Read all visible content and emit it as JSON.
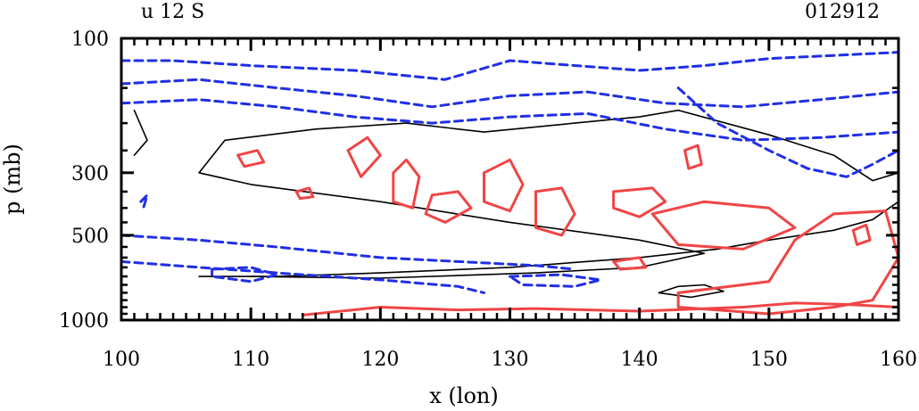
{
  "chart_data": {
    "type": "contour",
    "title_left": "u 12 S",
    "title_right": "012912",
    "xlabel": "x (lon)",
    "ylabel": "p (mb)",
    "xlim": [
      100,
      160
    ],
    "ylim": [
      1000,
      100
    ],
    "xticks": [
      100,
      110,
      120,
      130,
      140,
      150,
      160
    ],
    "xtick_labels": [
      "100",
      "110",
      "120",
      "130",
      "140",
      "150",
      "160"
    ],
    "yticks": [
      100,
      300,
      500,
      1000
    ],
    "ytick_labels": [
      "100",
      "300",
      "500",
      "1000"
    ],
    "colors": {
      "negative": "#1f2fe6",
      "zero": "#000000",
      "positive": "#f04545"
    },
    "contours": [
      {
        "sign": "zero",
        "points": [
          [
            106,
            700
          ],
          [
            112,
            700
          ],
          [
            120,
            680
          ],
          [
            130,
            650
          ],
          [
            140,
            600
          ],
          [
            146,
            560
          ],
          [
            150,
            520
          ],
          [
            155,
            480
          ],
          [
            158,
            440
          ],
          [
            160,
            380
          ]
        ]
      },
      {
        "sign": "zero",
        "points": [
          [
            106,
            300
          ],
          [
            108,
            230
          ],
          [
            115,
            210
          ],
          [
            122,
            200
          ],
          [
            128,
            215
          ],
          [
            135,
            200
          ],
          [
            140,
            190
          ],
          [
            143,
            180
          ],
          [
            150,
            220
          ],
          [
            155,
            260
          ],
          [
            158,
            320
          ],
          [
            160,
            300
          ]
        ]
      },
      {
        "sign": "zero",
        "points": [
          [
            106,
            300
          ],
          [
            110,
            330
          ],
          [
            120,
            380
          ],
          [
            130,
            450
          ],
          [
            140,
            520
          ],
          [
            145,
            580
          ],
          [
            140,
            650
          ],
          [
            132,
            680
          ],
          [
            120,
            710
          ],
          [
            110,
            700
          ]
        ]
      },
      {
        "sign": "zero",
        "points": [
          [
            101,
            180
          ],
          [
            102,
            230
          ],
          [
            101,
            260
          ]
        ]
      },
      {
        "sign": "zero",
        "points": [
          [
            141.5,
            800
          ],
          [
            143,
            760
          ],
          [
            145,
            750
          ],
          [
            146.5,
            790
          ],
          [
            144,
            830
          ],
          [
            141.5,
            800
          ]
        ]
      },
      {
        "sign": "negative",
        "points": [
          [
            100,
            120
          ],
          [
            104,
            120
          ],
          [
            110,
            125
          ],
          [
            118,
            130
          ],
          [
            125,
            140
          ],
          [
            130,
            120
          ],
          [
            140,
            130
          ],
          [
            145,
            125
          ],
          [
            150,
            118
          ],
          [
            155,
            115
          ],
          [
            160,
            112
          ]
        ]
      },
      {
        "sign": "negative",
        "points": [
          [
            100,
            145
          ],
          [
            106,
            140
          ],
          [
            112,
            150
          ],
          [
            118,
            160
          ],
          [
            124,
            175
          ],
          [
            130,
            160
          ],
          [
            136,
            155
          ],
          [
            142,
            170
          ],
          [
            148,
            175
          ],
          [
            154,
            165
          ],
          [
            160,
            155
          ]
        ]
      },
      {
        "sign": "negative",
        "points": [
          [
            100,
            170
          ],
          [
            106,
            165
          ],
          [
            112,
            175
          ],
          [
            118,
            190
          ],
          [
            124,
            200
          ],
          [
            130,
            190
          ],
          [
            136,
            185
          ],
          [
            142,
            210
          ],
          [
            148,
            230
          ],
          [
            154,
            225
          ],
          [
            160,
            215
          ]
        ]
      },
      {
        "sign": "negative",
        "points": [
          [
            143,
            150
          ],
          [
            146,
            200
          ],
          [
            150,
            250
          ],
          [
            153,
            290
          ],
          [
            156,
            310
          ],
          [
            158,
            280
          ],
          [
            160,
            250
          ]
        ]
      },
      {
        "sign": "negative",
        "points": [
          [
            100,
            500
          ],
          [
            106,
            520
          ],
          [
            112,
            550
          ],
          [
            120,
            600
          ],
          [
            126,
            620
          ],
          [
            132,
            640
          ],
          [
            135,
            660
          ]
        ]
      },
      {
        "sign": "negative",
        "points": [
          [
            100,
            620
          ],
          [
            106,
            650
          ],
          [
            112,
            680
          ],
          [
            120,
            720
          ],
          [
            126,
            760
          ],
          [
            128,
            800
          ]
        ]
      },
      {
        "sign": "negative",
        "points": [
          [
            107,
            660
          ],
          [
            110,
            650
          ],
          [
            112,
            690
          ],
          [
            110,
            730
          ],
          [
            107,
            700
          ],
          [
            107,
            660
          ]
        ]
      },
      {
        "sign": "negative",
        "points": [
          [
            130,
            700
          ],
          [
            134,
            690
          ],
          [
            137,
            720
          ],
          [
            135,
            760
          ],
          [
            131,
            750
          ],
          [
            130,
            700
          ]
        ]
      },
      {
        "sign": "negative",
        "points": [
          [
            101.5,
            380
          ],
          [
            102,
            360
          ],
          [
            101.7,
            400
          ]
        ]
      },
      {
        "sign": "positive",
        "points": [
          [
            109,
            260
          ],
          [
            110.5,
            250
          ],
          [
            111,
            275
          ],
          [
            109.5,
            285
          ],
          [
            109,
            260
          ]
        ]
      },
      {
        "sign": "positive",
        "points": [
          [
            113.5,
            350
          ],
          [
            114.5,
            340
          ],
          [
            114.8,
            365
          ],
          [
            113.8,
            370
          ],
          [
            113.5,
            350
          ]
        ]
      },
      {
        "sign": "positive",
        "points": [
          [
            117.5,
            250
          ],
          [
            119,
            225
          ],
          [
            120,
            260
          ],
          [
            118.5,
            310
          ],
          [
            117.5,
            250
          ]
        ]
      },
      {
        "sign": "positive",
        "points": [
          [
            121,
            300
          ],
          [
            122,
            270
          ],
          [
            123,
            310
          ],
          [
            122.5,
            400
          ],
          [
            121,
            380
          ],
          [
            121,
            300
          ]
        ]
      },
      {
        "sign": "positive",
        "points": [
          [
            124,
            360
          ],
          [
            126,
            350
          ],
          [
            127,
            400
          ],
          [
            125,
            450
          ],
          [
            123.5,
            420
          ],
          [
            124,
            360
          ]
        ]
      },
      {
        "sign": "positive",
        "points": [
          [
            128,
            300
          ],
          [
            130,
            270
          ],
          [
            131,
            330
          ],
          [
            130,
            410
          ],
          [
            128,
            380
          ],
          [
            128,
            300
          ]
        ]
      },
      {
        "sign": "positive",
        "points": [
          [
            132,
            350
          ],
          [
            134,
            340
          ],
          [
            135,
            420
          ],
          [
            134,
            500
          ],
          [
            132,
            470
          ],
          [
            132,
            350
          ]
        ]
      },
      {
        "sign": "positive",
        "points": [
          [
            138,
            350
          ],
          [
            141,
            340
          ],
          [
            142,
            380
          ],
          [
            140,
            430
          ],
          [
            138,
            400
          ],
          [
            138,
            350
          ]
        ]
      },
      {
        "sign": "positive",
        "points": [
          [
            143.5,
            250
          ],
          [
            144.5,
            240
          ],
          [
            144.8,
            280
          ],
          [
            143.8,
            290
          ],
          [
            143.5,
            250
          ]
        ]
      },
      {
        "sign": "positive",
        "points": [
          [
            141,
            420
          ],
          [
            145,
            380
          ],
          [
            150,
            400
          ],
          [
            152,
            470
          ],
          [
            148,
            560
          ],
          [
            143,
            540
          ],
          [
            141,
            420
          ]
        ]
      },
      {
        "sign": "positive",
        "points": [
          [
            143,
            800
          ],
          [
            150,
            730
          ],
          [
            152,
            520
          ],
          [
            155,
            420
          ],
          [
            159,
            410
          ],
          [
            160,
            600
          ],
          [
            158,
            850
          ],
          [
            155,
            900
          ],
          [
            150,
            950
          ],
          [
            143,
            900
          ],
          [
            143,
            800
          ]
        ]
      },
      {
        "sign": "positive",
        "points": [
          [
            156.5,
            480
          ],
          [
            157.5,
            460
          ],
          [
            157.8,
            520
          ],
          [
            156.8,
            540
          ],
          [
            156.5,
            480
          ]
        ]
      },
      {
        "sign": "positive",
        "points": [
          [
            138,
            620
          ],
          [
            140,
            600
          ],
          [
            140.5,
            650
          ],
          [
            138.5,
            660
          ],
          [
            138,
            620
          ]
        ]
      },
      {
        "sign": "positive",
        "points": [
          [
            114,
            960
          ],
          [
            120,
            900
          ],
          [
            126,
            920
          ],
          [
            132,
            910
          ],
          [
            140,
            930
          ],
          [
            148,
            900
          ],
          [
            152,
            870
          ],
          [
            156,
            880
          ],
          [
            160,
            900
          ]
        ]
      }
    ]
  }
}
